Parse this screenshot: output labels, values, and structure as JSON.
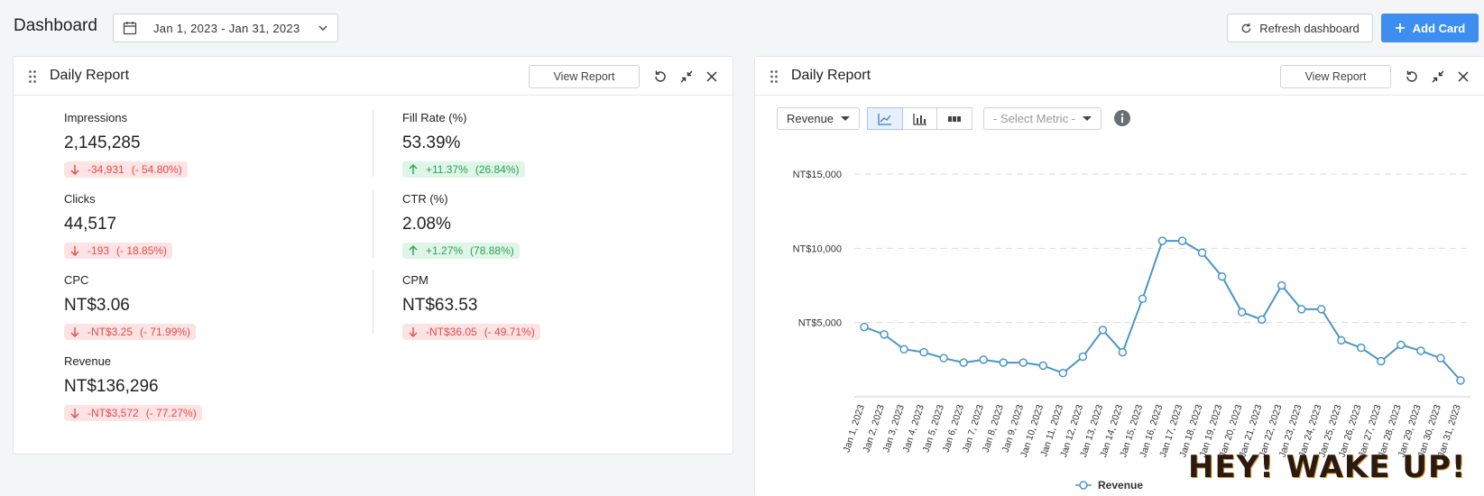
{
  "header": {
    "title": "Dashboard",
    "date_range": "Jan 1, 2023 - Jan 31, 2023",
    "refresh_label": "Refresh dashboard",
    "add_card_label": "Add Card"
  },
  "colors": {
    "accent": "#3d8ef0",
    "down_bg": "#fde3e3",
    "down_fg": "#e24b4b",
    "up_bg": "#def6e6",
    "up_fg": "#2f9e5b",
    "line": "#4a96c8"
  },
  "left_card": {
    "title": "Daily Report",
    "view_report_label": "View Report",
    "metrics": [
      {
        "label": "Impressions",
        "value": "2,145,285",
        "direction": "down",
        "change": "-34,931",
        "pct": "(- 54.80%)"
      },
      {
        "label": "Fill Rate (%)",
        "value": "53.39%",
        "direction": "up",
        "change": "+11.37%",
        "pct": "(26.84%)"
      },
      {
        "label": "Clicks",
        "value": "44,517",
        "direction": "down",
        "change": "-193",
        "pct": "(- 18.85%)"
      },
      {
        "label": "CTR (%)",
        "value": "2.08%",
        "direction": "up",
        "change": "+1.27%",
        "pct": "(78.88%)"
      },
      {
        "label": "CPC",
        "value": "NT$3.06",
        "direction": "down",
        "change": "-NT$3.25",
        "pct": "(- 71.99%)"
      },
      {
        "label": "CPM",
        "value": "NT$63.53",
        "direction": "down",
        "change": "-NT$36.05",
        "pct": "(- 49.71%)"
      },
      {
        "label": "Revenue",
        "value": "NT$136,296",
        "direction": "down",
        "change": "-NT$3,572",
        "pct": "(- 77.27%)"
      }
    ]
  },
  "right_card": {
    "title": "Daily Report",
    "view_report_label": "View Report",
    "metric_select": "Revenue",
    "second_metric_placeholder": "- Select Metric -"
  },
  "chart_data": {
    "type": "line",
    "title": "",
    "xlabel": "",
    "ylabel": "",
    "ylim": [
      0,
      15000
    ],
    "y_ticks": [
      "NT$5,000",
      "NT$10,000",
      "NT$15,000"
    ],
    "y_tick_values": [
      5000,
      10000,
      15000
    ],
    "categories": [
      "Jan 1, 2023",
      "Jan 2, 2023",
      "Jan 3, 2023",
      "Jan 4, 2023",
      "Jan 5, 2023",
      "Jan 6, 2023",
      "Jan 7, 2023",
      "Jan 8, 2023",
      "Jan 9, 2023",
      "Jan 10, 2023",
      "Jan 11, 2023",
      "Jan 12, 2023",
      "Jan 13, 2023",
      "Jan 14, 2023",
      "Jan 15, 2023",
      "Jan 16, 2023",
      "Jan 17, 2023",
      "Jan 18, 2023",
      "Jan 19, 2023",
      "Jan 20, 2023",
      "Jan 21, 2023",
      "Jan 22, 2023",
      "Jan 23, 2023",
      "Jan 24, 2023",
      "Jan 25, 2023",
      "Jan 26, 2023",
      "Jan 27, 2023",
      "Jan 28, 2023",
      "Jan 29, 2023",
      "Jan 30, 2023",
      "Jan 31, 2023"
    ],
    "series": [
      {
        "name": "Revenue",
        "values": [
          4700,
          4200,
          3200,
          3000,
          2600,
          2300,
          2500,
          2300,
          2300,
          2100,
          1600,
          2700,
          4500,
          3000,
          6600,
          10500,
          10500,
          9700,
          8100,
          5700,
          5200,
          7500,
          5900,
          5900,
          3800,
          3300,
          2400,
          3500,
          3100,
          2600,
          1100
        ]
      }
    ],
    "legend": "bottom",
    "grid": true
  },
  "overlay": {
    "brand_text": "HEY! WAKE UP!"
  }
}
